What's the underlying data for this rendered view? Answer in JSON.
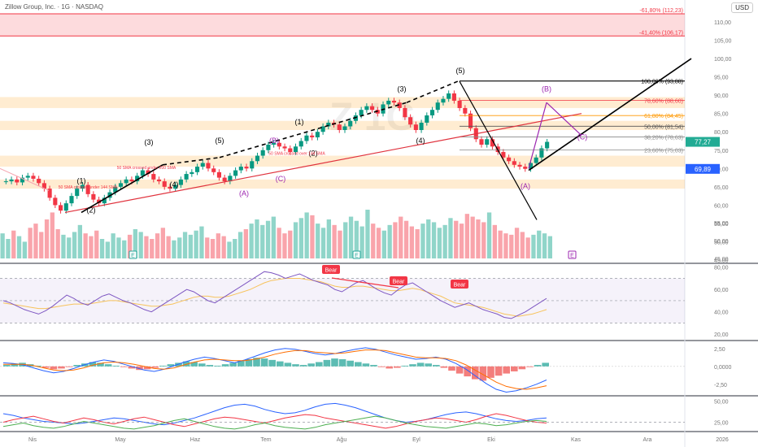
{
  "header": {
    "symbol_line": "Zillow Group, Inc. · 1G · NASDAQ",
    "currency": "USD"
  },
  "chart_data": [
    {
      "type": "candlestick",
      "panel": "price",
      "title": "Zillow Group, Inc. · 1G · NASDAQ",
      "watermark": "Z 1G",
      "x_labels": [
        "Nis",
        "May",
        "Haz",
        "Tem",
        "Ağu",
        "Eyl",
        "Eki",
        "Kas",
        "Ara",
        "2026"
      ],
      "y_ticks": [
        45,
        50,
        55,
        60,
        65,
        70,
        75,
        80,
        85,
        90,
        95,
        100,
        105,
        110
      ],
      "ylim": [
        45,
        112
      ],
      "current_price": "77,27",
      "current_price_color": "#22ab94",
      "marked_price": "69,89",
      "marked_price_color": "#2962ff",
      "closes": [
        66.5,
        67.0,
        66.2,
        67.5,
        68.0,
        67.2,
        66.0,
        64.5,
        62.0,
        60.0,
        58.5,
        60.5,
        62.5,
        64.5,
        65.5,
        63.0,
        61.5,
        60.5,
        62.0,
        63.5,
        65.0,
        66.0,
        67.0,
        66.5,
        68.0,
        69.5,
        68.5,
        67.0,
        66.5,
        65.0,
        64.5,
        65.5,
        67.0,
        68.5,
        69.0,
        70.5,
        71.5,
        70.0,
        69.0,
        67.5,
        66.5,
        68.0,
        69.5,
        70.5,
        70.0,
        72.0,
        73.5,
        75.0,
        76.5,
        77.0,
        76.0,
        75.5,
        74.5,
        76.0,
        77.5,
        79.0,
        78.5,
        80.0,
        81.5,
        82.5,
        82.0,
        80.5,
        81.5,
        83.0,
        84.5,
        86.0,
        87.0,
        86.0,
        85.0,
        87.5,
        88.5,
        88.0,
        86.5,
        84.0,
        82.0,
        80.5,
        82.5,
        84.5,
        86.0,
        88.0,
        89.0,
        90.5,
        88.5,
        86.5,
        85.0,
        81.0,
        78.0,
        76.5,
        78.0,
        76.0,
        74.5,
        73.0,
        72.0,
        71.0,
        70.5,
        69.9,
        71.5,
        73.0,
        75.5,
        77.27
      ],
      "volume_range": [
        0,
        55
      ],
      "volume_ticks": [
        45,
        50,
        55
      ],
      "volumes": [
        18,
        14,
        20,
        16,
        12,
        22,
        25,
        19,
        28,
        33,
        21,
        17,
        15,
        19,
        24,
        18,
        16,
        20,
        14,
        12,
        18,
        15,
        13,
        17,
        21,
        19,
        16,
        14,
        18,
        22,
        16,
        13,
        15,
        19,
        17,
        20,
        23,
        15,
        14,
        18,
        16,
        12,
        14,
        19,
        21,
        25,
        28,
        24,
        27,
        30,
        22,
        18,
        20,
        26,
        29,
        33,
        31,
        25,
        22,
        28,
        24,
        20,
        26,
        30,
        27,
        23,
        35,
        25,
        22,
        20,
        24,
        26,
        30,
        27,
        23,
        21,
        25,
        28,
        26,
        22,
        24,
        29,
        27,
        25,
        32,
        30,
        28,
        26,
        33,
        24,
        20,
        18,
        17,
        22,
        19,
        15,
        17,
        20,
        18,
        16
      ],
      "fibonacci_levels": [
        {
          "label": "100,00% (93,88)",
          "value": 93.88,
          "color": "#000000"
        },
        {
          "label": "78,60% (88,60)",
          "value": 88.6,
          "color": "#f23645"
        },
        {
          "label": "61,80% (84,45)",
          "value": 84.45,
          "color": "#ff9800"
        },
        {
          "label": "50,00% (81,54)",
          "value": 81.54,
          "color": "#555555"
        },
        {
          "label": "38,20% (78,63)",
          "value": 78.63,
          "color": "#888888"
        },
        {
          "label": "23,60% (75,03)",
          "value": 75.03,
          "color": "#888888"
        }
      ],
      "upper_levels": [
        {
          "label": "-61,80% (112,23)",
          "value": 112.23,
          "color": "#f23645"
        },
        {
          "label": "-41,40% (106,17)",
          "value": 106.17,
          "color": "#f23645"
        }
      ],
      "wave_labels": [
        "(1)",
        "(2)",
        "(3)",
        "(4)",
        "(5)",
        "(A)",
        "(B)",
        "(C)",
        "(1)",
        "(2)",
        "(3)",
        "(4)",
        "(5)",
        "(A)",
        "(B)",
        "(C)"
      ],
      "annotations": [
        "50 SMA crossed under 144 SMA",
        "50 SMA crossed under 200 SMA",
        "50 SMA crossed over 144 SMA"
      ],
      "earnings_markers": [
        "E",
        "E",
        "E"
      ]
    },
    {
      "type": "line",
      "panel": "rsi",
      "y_ticks": [
        20,
        40,
        60,
        80
      ],
      "ylim": [
        15,
        82
      ],
      "bands": [
        70,
        50,
        30
      ],
      "series": [
        {
          "values": [
            50,
            48,
            45,
            42,
            40,
            38,
            41,
            45,
            50,
            55,
            52,
            48,
            46,
            50,
            54,
            56,
            53,
            50,
            48,
            45,
            42,
            40,
            44,
            48,
            52,
            56,
            60,
            58,
            54,
            50,
            48,
            52,
            56,
            60,
            64,
            68,
            72,
            76,
            75,
            73,
            70,
            72,
            74,
            71,
            68,
            66,
            64,
            60,
            58,
            62,
            66,
            68,
            64,
            60,
            57,
            55,
            60,
            64,
            66,
            62,
            58,
            54,
            50,
            47,
            44,
            46,
            48,
            45,
            42,
            40,
            38,
            35,
            34,
            37,
            40,
            44,
            48,
            52
          ]
        },
        {
          "values": [
            48,
            47,
            46,
            45,
            44,
            43,
            43,
            44,
            45,
            46,
            47,
            47,
            47,
            48,
            49,
            50,
            50,
            49,
            48,
            47,
            46,
            45,
            45,
            46,
            47,
            49,
            51,
            53,
            54,
            54,
            53,
            53,
            54,
            56,
            58,
            60,
            63,
            66,
            68,
            69,
            70,
            70,
            70,
            69,
            68,
            67,
            65,
            63,
            62,
            62,
            63,
            63,
            62,
            61,
            60,
            59,
            59,
            60,
            61,
            60,
            58,
            56,
            54,
            51,
            48,
            47,
            46,
            45,
            44,
            42,
            40,
            38,
            37,
            36,
            37,
            38,
            40,
            42
          ]
        }
      ],
      "annotations": [
        "Bear",
        "Bear",
        "Bear"
      ]
    },
    {
      "type": "bar",
      "panel": "macd",
      "y_ticks": [
        "2,50",
        "0,0000",
        "-2,50"
      ],
      "ylim": [
        -4,
        3.5
      ],
      "histogram": [
        0.2,
        0.4,
        0.5,
        0.3,
        0.1,
        -0.2,
        -0.4,
        -0.3,
        -0.1,
        0.2,
        0.4,
        0.6,
        0.5,
        0.3,
        0.1,
        -0.1,
        -0.3,
        -0.5,
        -0.4,
        -0.2,
        0.1,
        0.3,
        0.5,
        0.7,
        0.6,
        0.4,
        0.2,
        0.1,
        0.3,
        0.5,
        0.8,
        1.0,
        1.2,
        1.1,
        0.9,
        0.7,
        0.5,
        0.3,
        0.2,
        0.4,
        0.6,
        0.9,
        1.1,
        1.0,
        0.8,
        0.6,
        0.4,
        0.2,
        -0.1,
        -0.3,
        -0.2,
        0.1,
        0.3,
        0.5,
        0.4,
        0.2,
        -0.2,
        -0.6,
        -1.0,
        -1.4,
        -1.8,
        -2.0,
        -1.6,
        -1.3,
        -1.0,
        -0.7,
        -0.4,
        -0.1,
        0.2,
        0.5
      ],
      "series": [
        {
          "values": [
            0.5,
            0.4,
            0.2,
            -0.2,
            -0.6,
            -0.9,
            -0.7,
            -0.3,
            0.2,
            0.6,
            0.9,
            0.7,
            0.3,
            -0.1,
            -0.5,
            -0.7,
            -0.4,
            0.1,
            0.6,
            1.0,
            1.3,
            1.1,
            0.8,
            0.5,
            0.9,
            1.4,
            1.9,
            2.3,
            2.5,
            2.4,
            2.1,
            1.8,
            1.6,
            1.8,
            2.1,
            2.4,
            2.6,
            2.4,
            2.0,
            1.6,
            1.3,
            1.0,
            1.1,
            1.3,
            1.0,
            0.4,
            -0.4,
            -1.4,
            -2.4,
            -3.2,
            -3.6,
            -3.4,
            -3.0,
            -2.5,
            -1.9
          ]
        },
        {
          "values": [
            0.3,
            0.3,
            0.3,
            0.1,
            -0.2,
            -0.5,
            -0.6,
            -0.5,
            -0.2,
            0.2,
            0.5,
            0.6,
            0.5,
            0.3,
            0.0,
            -0.3,
            -0.4,
            -0.2,
            0.2,
            0.6,
            0.9,
            1.0,
            0.9,
            0.8,
            0.8,
            1.0,
            1.3,
            1.7,
            2.0,
            2.2,
            2.2,
            2.0,
            1.9,
            1.8,
            1.9,
            2.1,
            2.3,
            2.3,
            2.2,
            1.9,
            1.6,
            1.3,
            1.2,
            1.2,
            1.1,
            0.8,
            0.2,
            -0.6,
            -1.4,
            -2.2,
            -2.8,
            -3.1,
            -3.2,
            -3.0,
            -2.7
          ]
        }
      ]
    },
    {
      "type": "line",
      "panel": "dmi",
      "y_ticks": [
        "50,00",
        "25,00"
      ],
      "ylim": [
        15,
        55
      ],
      "series": [
        {
          "values": [
            35,
            33,
            30,
            28,
            26,
            25,
            24,
            23,
            24,
            26,
            28,
            30,
            29,
            27,
            25,
            23,
            22,
            24,
            27,
            30,
            34,
            38,
            42,
            45,
            46,
            44,
            40,
            37,
            35,
            36,
            39,
            43,
            46,
            47,
            45,
            42,
            38,
            34,
            30,
            27,
            25,
            26,
            28,
            31,
            34,
            36,
            37,
            35,
            32,
            29,
            27,
            26,
            27,
            29,
            30
          ]
        },
        {
          "values": [
            25,
            28,
            30,
            32,
            29,
            26,
            24,
            27,
            30,
            28,
            25,
            23,
            26,
            29,
            31,
            28,
            25,
            22,
            20,
            23,
            26,
            29,
            31,
            30,
            28,
            26,
            24,
            27,
            30,
            32,
            34,
            33,
            30,
            28,
            26,
            24,
            22,
            20,
            18,
            20,
            23,
            26,
            28,
            30,
            29,
            27,
            25,
            28,
            32,
            35,
            33,
            30,
            27,
            25,
            24
          ]
        },
        {
          "values": [
            20,
            22,
            24,
            21,
            19,
            18,
            20,
            23,
            26,
            24,
            22,
            20,
            18,
            17,
            19,
            21,
            24,
            27,
            29,
            26,
            23,
            20,
            18,
            17,
            19,
            22,
            24,
            21,
            19,
            18,
            17,
            19,
            22,
            24,
            26,
            28,
            30,
            32,
            30,
            27,
            24,
            22,
            20,
            19,
            18,
            20,
            22,
            24,
            23,
            21,
            22,
            24,
            26,
            27,
            26
          ]
        }
      ]
    }
  ]
}
